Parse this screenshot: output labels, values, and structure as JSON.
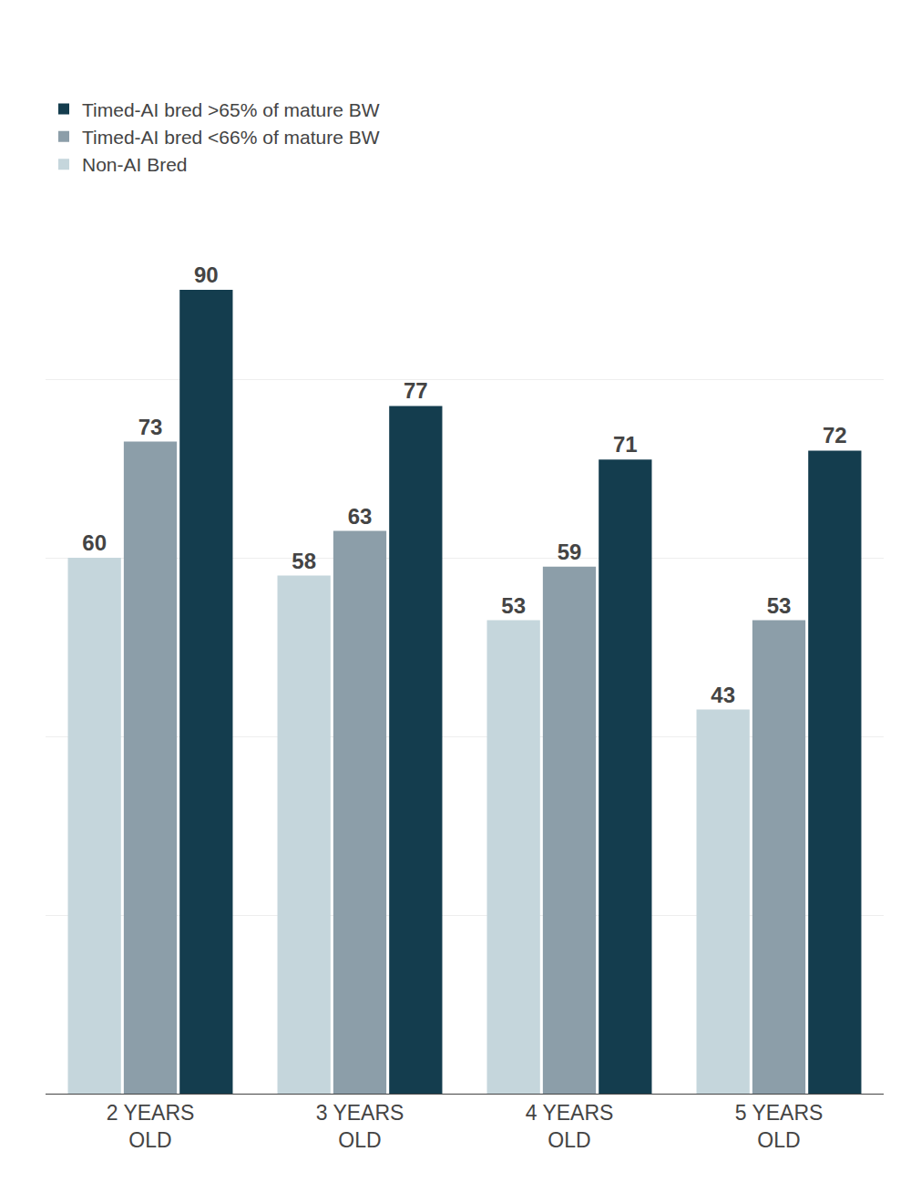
{
  "chart_data": {
    "type": "bar",
    "categories": [
      "2 YEARS\nOLD",
      "3 YEARS\nOLD",
      "4 YEARS\nOLD",
      "5 YEARS\nOLD"
    ],
    "series": [
      {
        "name": "Timed-AI bred >65% of mature BW",
        "color": "#143d4e",
        "values": [
          90,
          77,
          71,
          72
        ]
      },
      {
        "name": "Timed-AI bred <66% of mature BW",
        "color": "#8c9ea9",
        "values": [
          73,
          63,
          59,
          53
        ]
      },
      {
        "name": "Non-AI Bred",
        "color": "#c5d6dc",
        "values": [
          60,
          58,
          53,
          43
        ]
      }
    ],
    "ylim": [
      0,
      100
    ],
    "yticks": [
      0,
      20,
      40,
      60,
      80,
      100
    ],
    "grid": true,
    "legend": "upper left",
    "data_labels": true,
    "tick_labels": "x"
  }
}
